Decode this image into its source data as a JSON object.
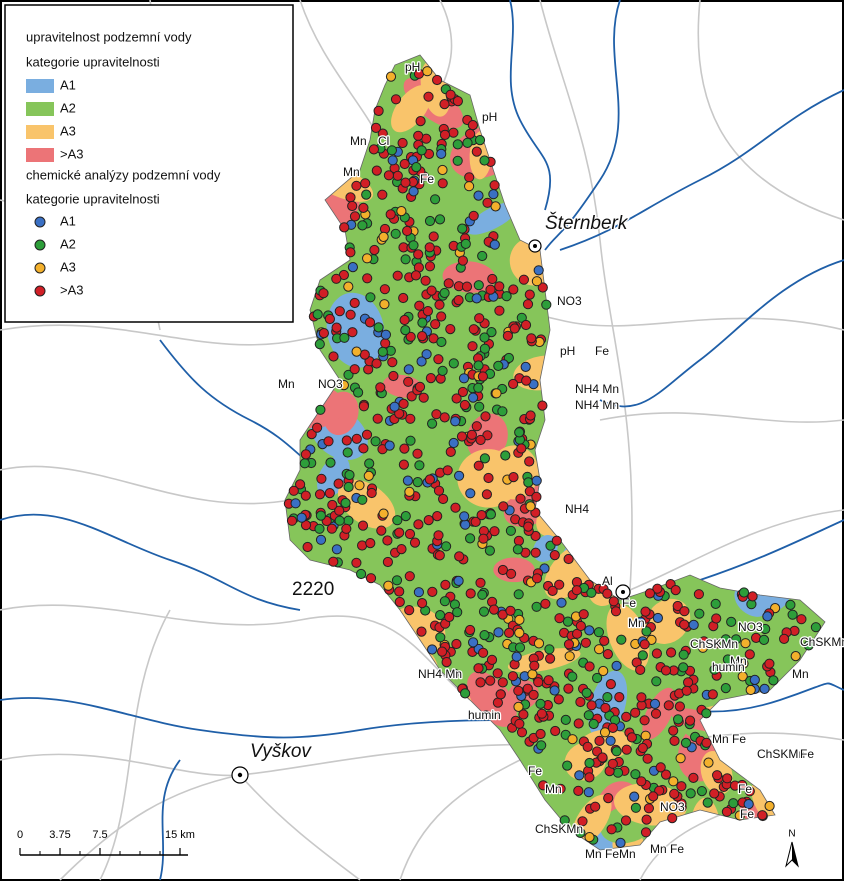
{
  "legend": {
    "area_title": "upravitelnost podzemní vody",
    "area_subtitle": "kategorie upravitelnosti",
    "area_items": [
      {
        "name": "A1",
        "color": "#7aaee0"
      },
      {
        "name": "A2",
        "color": "#86c55a"
      },
      {
        "name": "A3",
        "color": "#f9c46b"
      },
      {
        "name": ">A3",
        "color": "#ec7477"
      }
    ],
    "point_title": "chemické analýzy podzemní vody",
    "point_subtitle": "kategorie upravitelnosti",
    "point_items": [
      {
        "name": "A1",
        "color": "#3a70c4"
      },
      {
        "name": "A2",
        "color": "#2d9e3a"
      },
      {
        "name": "A3",
        "color": "#f3b02c"
      },
      {
        "name": ">A3",
        "color": "#d11f26"
      }
    ]
  },
  "places": [
    "Šternberk",
    "Vyškov",
    "2220"
  ],
  "element_labels": [
    "pH",
    "pH",
    "Mn",
    "Cl",
    "Mn",
    "Fe",
    "NO3",
    "pH",
    "Fe",
    "NH4 Mn",
    "NH4 Mn",
    "Mn",
    "NO3",
    "NH4",
    "Al",
    "Fe",
    "Mn",
    "NO3",
    "ChSKMn",
    "ChSKMn",
    "Mn",
    "humin",
    "Mn",
    "NH4 Mn",
    "humin",
    "Mn Fe",
    "ChSKMn",
    "Fe",
    "Fe",
    "Mn",
    "Fe",
    "Fe",
    "ChSKMn",
    "Mn FeMn",
    "Mn Fe",
    "NO3"
  ],
  "scale": [
    "0",
    "3.75",
    "7.5",
    "15 km"
  ],
  "north": "N"
}
